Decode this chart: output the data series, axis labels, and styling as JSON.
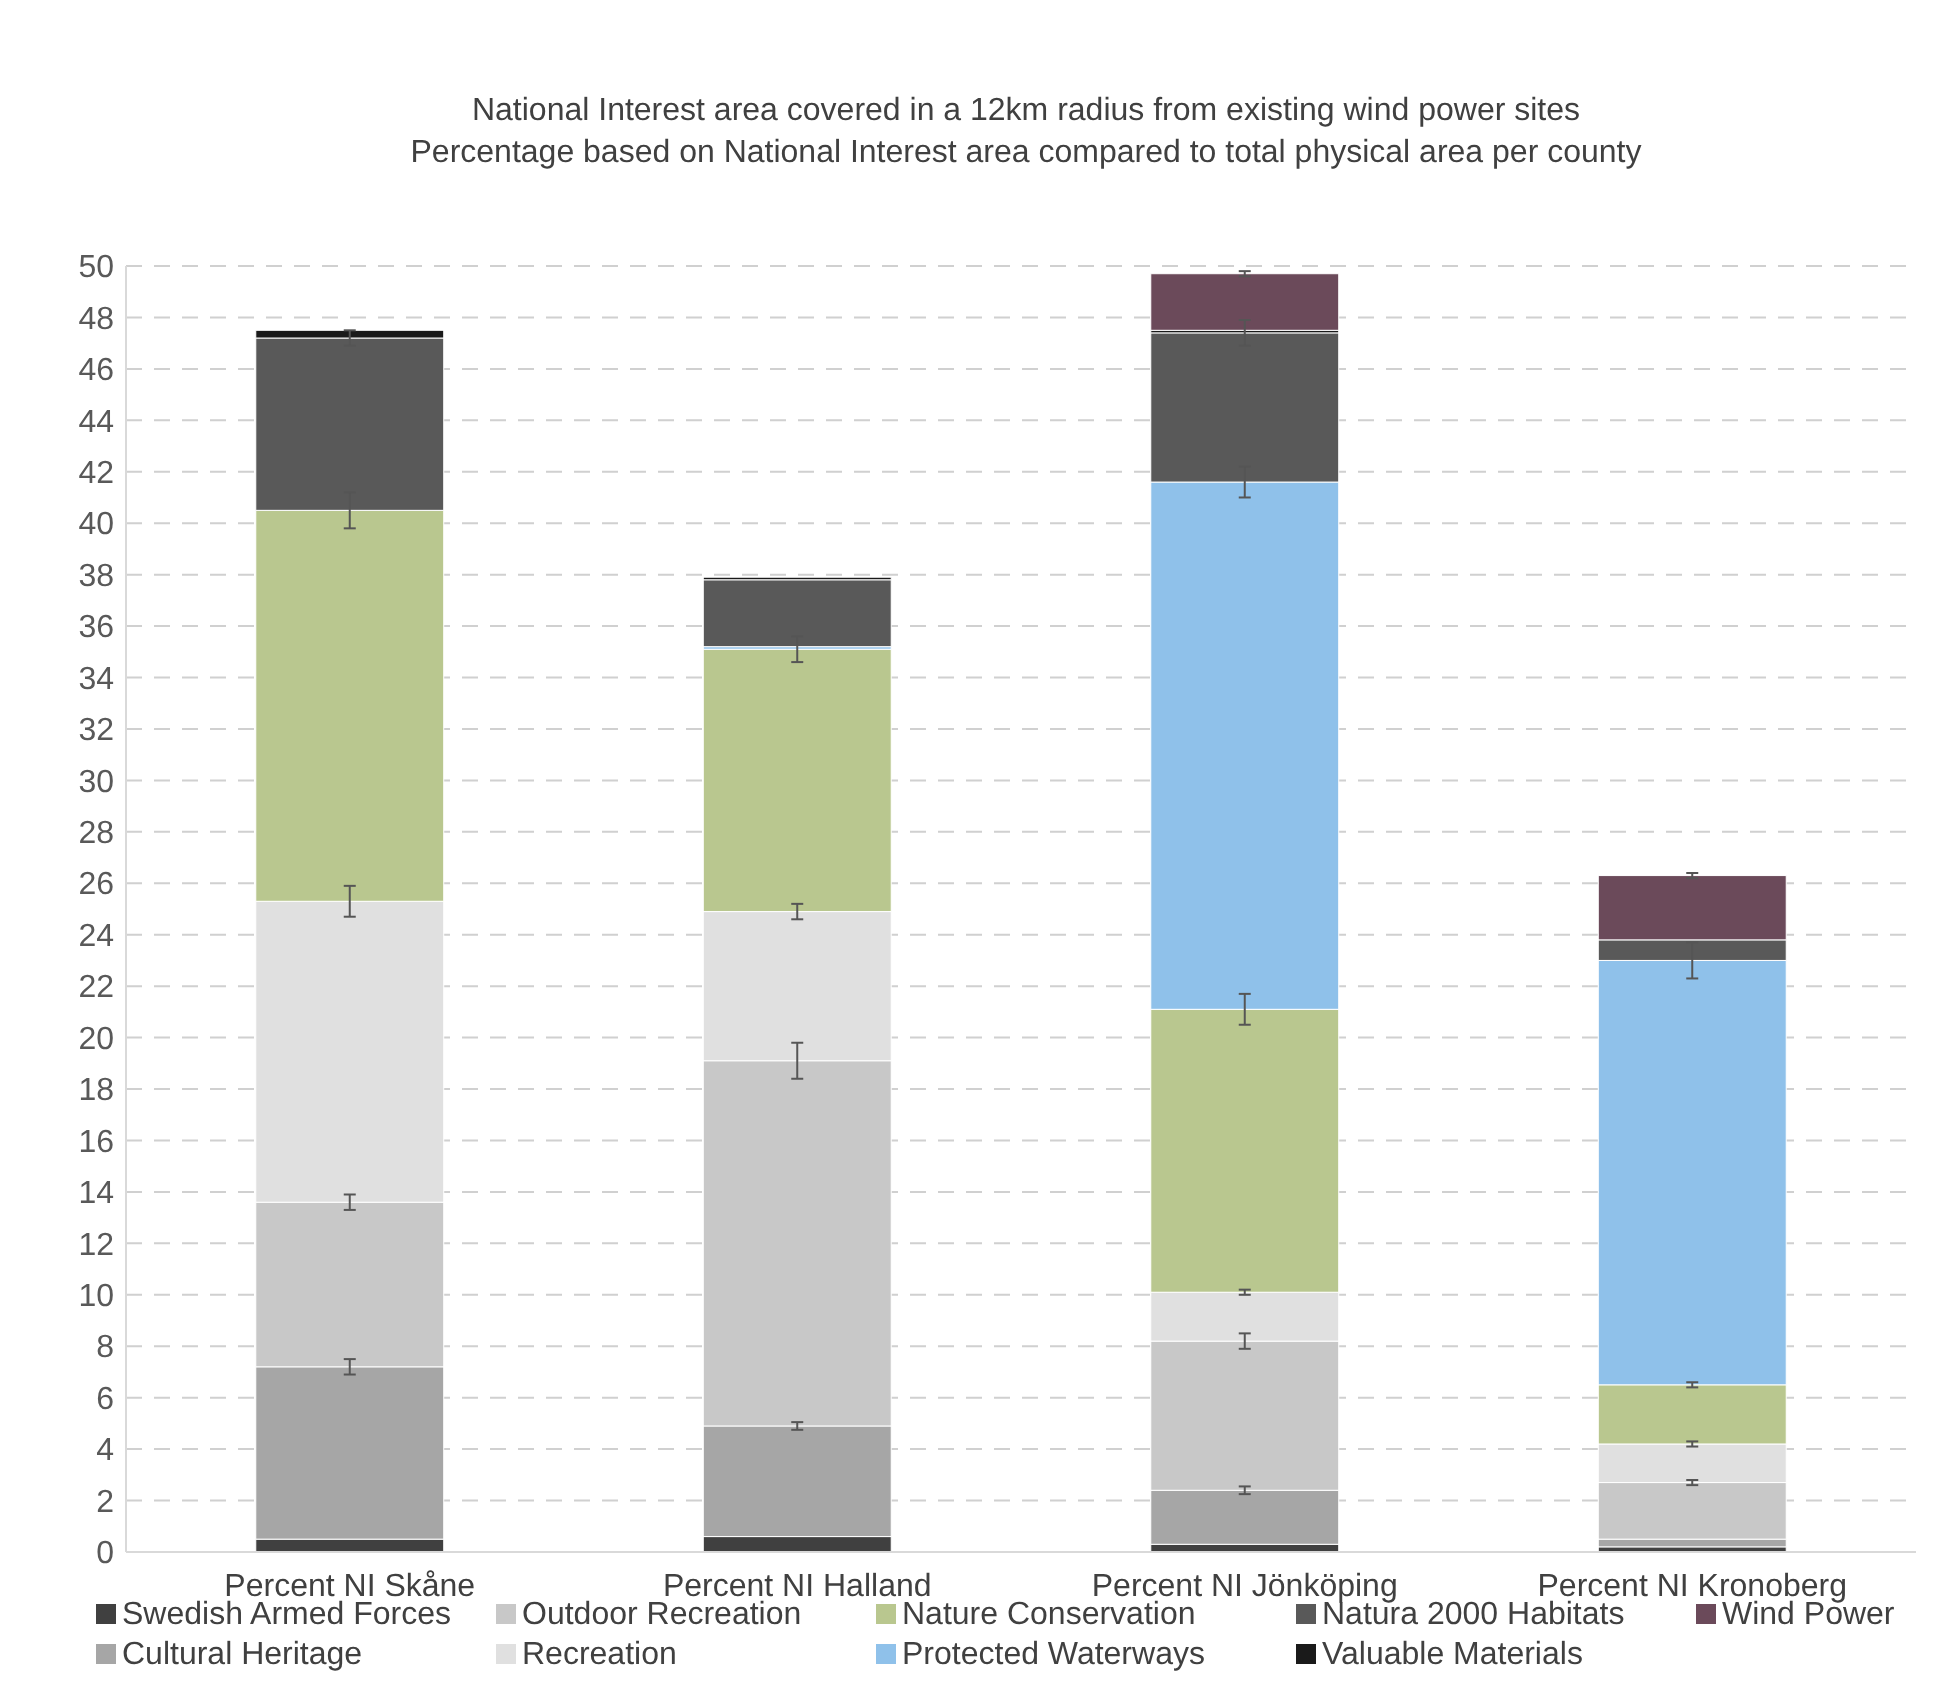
{
  "chart_data": {
    "type": "bar",
    "stacked": true,
    "title": "National Interest area covered in a 12km radius from existing wind power sites",
    "subtitle": "Percentage based on National Interest area compared to  total physical area per county",
    "categories": [
      "Percent NI Skåne",
      "Percent NI Halland",
      "Percent NI Jönköping",
      "Percent NI Kronoberg"
    ],
    "series": [
      {
        "name": "Swedish Armed Forces",
        "color": "#404040",
        "values": [
          0.5,
          0.6,
          0.3,
          0.2
        ]
      },
      {
        "name": "Cultural Heritage",
        "color": "#a6a6a6",
        "values": [
          6.7,
          4.3,
          2.1,
          0.3
        ],
        "errors": [
          0.3,
          0.15,
          0.15,
          null
        ]
      },
      {
        "name": "Outdoor Recreation",
        "color": "#c8c8c8",
        "values": [
          6.4,
          14.2,
          5.8,
          2.2
        ],
        "errors": [
          0.3,
          0.7,
          0.3,
          0.1
        ]
      },
      {
        "name": "Recreation",
        "color": "#e0e0e0",
        "values": [
          11.7,
          5.8,
          1.9,
          1.5
        ],
        "errors": [
          0.6,
          0.3,
          0.1,
          0.1
        ]
      },
      {
        "name": "Nature Conservation",
        "color": "#b9c78f",
        "values": [
          15.2,
          10.2,
          11.0,
          2.3
        ],
        "errors": [
          0.7,
          0.5,
          0.6,
          0.1
        ]
      },
      {
        "name": "Protected Waterways",
        "color": "#8fc1ea",
        "values": [
          0,
          0.1,
          20.5,
          16.5
        ],
        "errors": [
          null,
          null,
          0.6,
          0.7
        ]
      },
      {
        "name": "Natura 2000 Habitats",
        "color": "#595959",
        "values": [
          6.7,
          2.6,
          5.8,
          0.8
        ],
        "errors": [
          0.3,
          null,
          0.5,
          null
        ]
      },
      {
        "name": "Valuable Materials",
        "color": "#1a1a1a",
        "values": [
          0.3,
          0.1,
          0.1,
          0
        ]
      },
      {
        "name": "Wind Power",
        "color": "#6b4a5a",
        "values": [
          0,
          0,
          2.2,
          2.5
        ],
        "errors": [
          null,
          null,
          0.1,
          0.1
        ]
      }
    ],
    "ylim": [
      0,
      50
    ],
    "yticks": [
      0,
      2,
      4,
      6,
      8,
      10,
      12,
      14,
      16,
      18,
      20,
      22,
      24,
      26,
      28,
      30,
      32,
      34,
      36,
      38,
      40,
      42,
      44,
      46,
      48,
      50
    ],
    "grid": "y",
    "legend": "bottom"
  }
}
